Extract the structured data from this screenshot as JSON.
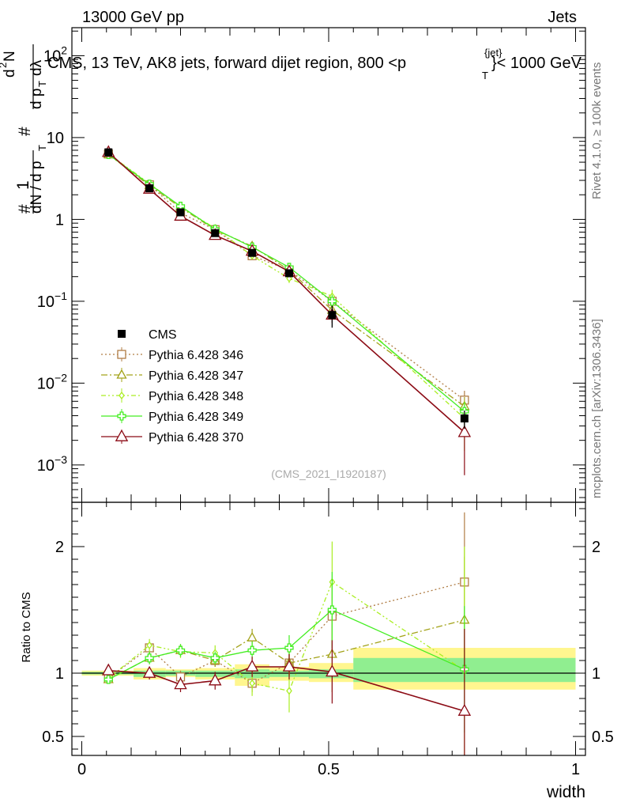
{
  "header": {
    "left": "13000 GeV pp",
    "right": "Jets",
    "title": "CMS, 13 TeV, AK8 jets, forward dijet region, 800 <p",
    "title_sup": "{jet}",
    "title_sub": "T",
    "title_end": "}< 1000 GeV",
    "side_top": "Rivet 4.1.0, ≥ 100k events",
    "side_bottom": "mcplots.cern.ch [arXiv:1306.3436]",
    "analysis": "(CMS_2021_I1920187)"
  },
  "colors": {
    "cms": "#000000",
    "p346": "#b07d45",
    "p347": "#a3a31a",
    "p348": "#aaee22",
    "p349": "#44ee22",
    "p370": "#8b0a14",
    "band_yellow": "#fff68f",
    "band_green": "#90ee90"
  },
  "chart_data": [
    {
      "type": "line",
      "panel": "main",
      "yscale": "log",
      "xlim": [
        -0.02,
        1.02
      ],
      "ylim": [
        0.00035,
        220
      ],
      "xlabel": "width",
      "ylabel": "1/N dN/dp_T × d²N/(dp_T dλ)",
      "y_ticks": [
        {
          "v": 0.001,
          "base": "10",
          "exp": "−3"
        },
        {
          "v": 0.01,
          "base": "10",
          "exp": "−2"
        },
        {
          "v": 0.1,
          "base": "10",
          "exp": "−1"
        },
        {
          "v": 1,
          "base": "1",
          "exp": ""
        },
        {
          "v": 10,
          "base": "10",
          "exp": ""
        },
        {
          "v": 100,
          "base": "10",
          "exp": "2"
        }
      ],
      "x_ticks": [
        {
          "v": 0,
          "label": "0"
        },
        {
          "v": 0.5,
          "label": "0.5"
        },
        {
          "v": 1,
          "label": "1"
        }
      ],
      "x": [
        0.054,
        0.137,
        0.2,
        0.27,
        0.345,
        0.42,
        0.507,
        0.775
      ],
      "cms": {
        "name": "CMS",
        "values": [
          6.6,
          2.4,
          1.22,
          0.68,
          0.39,
          0.22,
          0.068,
          0.0037
        ],
        "rel_err": [
          0.05,
          0.05,
          0.05,
          0.06,
          0.07,
          0.1,
          0.3,
          0.25
        ]
      },
      "series": [
        {
          "key": "p346",
          "name": "Pythia 6.428 346",
          "style": "dot",
          "marker": "square",
          "values": [
            6.3,
            2.65,
            1.2,
            0.75,
            0.36,
            0.24,
            0.1,
            0.0062
          ],
          "rel_err": [
            0.02,
            0.04,
            0.05,
            0.05,
            0.07,
            0.1,
            0.2,
            0.3
          ]
        },
        {
          "key": "p347",
          "name": "Pythia 6.428 347",
          "style": "dashdot",
          "marker": "triangle",
          "values": [
            6.2,
            2.6,
            1.4,
            0.75,
            0.47,
            0.24,
            0.078,
            0.0052
          ],
          "rel_err": [
            0.02,
            0.04,
            0.05,
            0.05,
            0.07,
            0.1,
            0.2,
            0.3
          ]
        },
        {
          "key": "p348",
          "name": "Pythia 6.428 348",
          "style": "dashdot2",
          "marker": "diamond",
          "values": [
            6.3,
            2.75,
            1.42,
            0.78,
            0.36,
            0.19,
            0.115,
            0.0037
          ],
          "rel_err": [
            0.02,
            0.04,
            0.05,
            0.05,
            0.07,
            0.12,
            0.2,
            0.6
          ]
        },
        {
          "key": "p349",
          "name": "Pythia 6.428 349",
          "style": "solid",
          "marker": "cross",
          "values": [
            6.2,
            2.7,
            1.45,
            0.76,
            0.46,
            0.26,
            0.1,
            0.0045
          ],
          "rel_err": [
            0.02,
            0.04,
            0.05,
            0.05,
            0.07,
            0.1,
            0.2,
            0.3
          ]
        },
        {
          "key": "p370",
          "name": "Pythia 6.428 370",
          "style": "solid",
          "marker": "triangle",
          "values": [
            6.6,
            2.35,
            1.1,
            0.64,
            0.41,
            0.23,
            0.068,
            0.0025
          ],
          "rel_err": [
            0.02,
            0.04,
            0.05,
            0.06,
            0.07,
            0.1,
            0.2,
            0.7
          ]
        }
      ]
    },
    {
      "type": "line",
      "panel": "ratio",
      "ylabel": "Ratio to CMS",
      "xlim": [
        -0.02,
        1.02
      ],
      "ylim": [
        0.35,
        2.35
      ],
      "y_ticks": [
        0.5,
        1,
        2
      ],
      "x_ticks": [
        {
          "v": 0,
          "label": "0"
        },
        {
          "v": 0.5,
          "label": "0.5"
        },
        {
          "v": 1,
          "label": "1"
        }
      ],
      "bands": [
        {
          "x0": 0.0,
          "x1": 0.105,
          "y_lo": 0.98,
          "y_hi": 1.02,
          "g_lo": 0.99,
          "g_hi": 1.01
        },
        {
          "x0": 0.105,
          "x1": 0.17,
          "y_lo": 0.95,
          "y_hi": 1.04,
          "g_lo": 0.97,
          "g_hi": 1.02
        },
        {
          "x0": 0.17,
          "x1": 0.23,
          "y_lo": 0.97,
          "y_hi": 1.03,
          "g_lo": 0.98,
          "g_hi": 1.02
        },
        {
          "x0": 0.23,
          "x1": 0.31,
          "y_lo": 0.95,
          "y_hi": 1.04,
          "g_lo": 0.97,
          "g_hi": 1.02
        },
        {
          "x0": 0.31,
          "x1": 0.38,
          "y_lo": 0.9,
          "y_hi": 1.07,
          "g_lo": 0.96,
          "g_hi": 1.03
        },
        {
          "x0": 0.38,
          "x1": 0.46,
          "y_lo": 0.94,
          "y_hi": 1.05,
          "g_lo": 0.97,
          "g_hi": 1.02
        },
        {
          "x0": 0.46,
          "x1": 0.55,
          "y_lo": 0.93,
          "y_hi": 1.08,
          "g_lo": 0.96,
          "g_hi": 1.03
        },
        {
          "x0": 0.55,
          "x1": 1.0,
          "y_lo": 0.87,
          "y_hi": 1.2,
          "g_lo": 0.93,
          "g_hi": 1.12
        }
      ],
      "x": [
        0.054,
        0.137,
        0.2,
        0.27,
        0.345,
        0.42,
        0.507,
        0.775
      ],
      "series": [
        {
          "key": "p346",
          "name": "Pythia 6.428 346",
          "style": "dot",
          "marker": "square",
          "values": [
            0.96,
            1.2,
            0.97,
            1.1,
            0.92,
            1.08,
            1.45,
            1.72
          ],
          "err": [
            0.03,
            0.05,
            0.05,
            0.05,
            0.07,
            0.1,
            0.3,
            0.55
          ]
        },
        {
          "key": "p347",
          "name": "Pythia 6.428 347",
          "style": "dashdot",
          "marker": "triangle",
          "values": [
            0.95,
            1.12,
            1.18,
            1.1,
            1.28,
            1.08,
            1.15,
            1.42
          ],
          "err": [
            0.03,
            0.05,
            0.05,
            0.05,
            0.07,
            0.1,
            0.3,
            0.5
          ]
        },
        {
          "key": "p348",
          "name": "Pythia 6.428 348",
          "style": "dashdot2",
          "marker": "diamond",
          "values": [
            0.96,
            1.22,
            1.17,
            1.16,
            0.92,
            0.86,
            1.72,
            1.02
          ],
          "err": [
            0.03,
            0.05,
            0.05,
            0.06,
            0.1,
            0.17,
            0.32,
            0.98
          ]
        },
        {
          "key": "p349",
          "name": "Pythia 6.428 349",
          "style": "solid",
          "marker": "cross",
          "values": [
            0.95,
            1.12,
            1.18,
            1.12,
            1.18,
            1.2,
            1.5,
            1.03
          ],
          "err": [
            0.03,
            0.05,
            0.05,
            0.05,
            0.07,
            0.1,
            0.3,
            0.5
          ]
        },
        {
          "key": "p370",
          "name": "Pythia 6.428 370",
          "style": "solid",
          "marker": "triangle",
          "values": [
            1.02,
            1.0,
            0.91,
            0.94,
            1.05,
            1.05,
            1.01,
            0.7
          ],
          "err": [
            0.03,
            0.05,
            0.06,
            0.07,
            0.08,
            0.1,
            0.25,
            0.65
          ]
        }
      ]
    }
  ]
}
